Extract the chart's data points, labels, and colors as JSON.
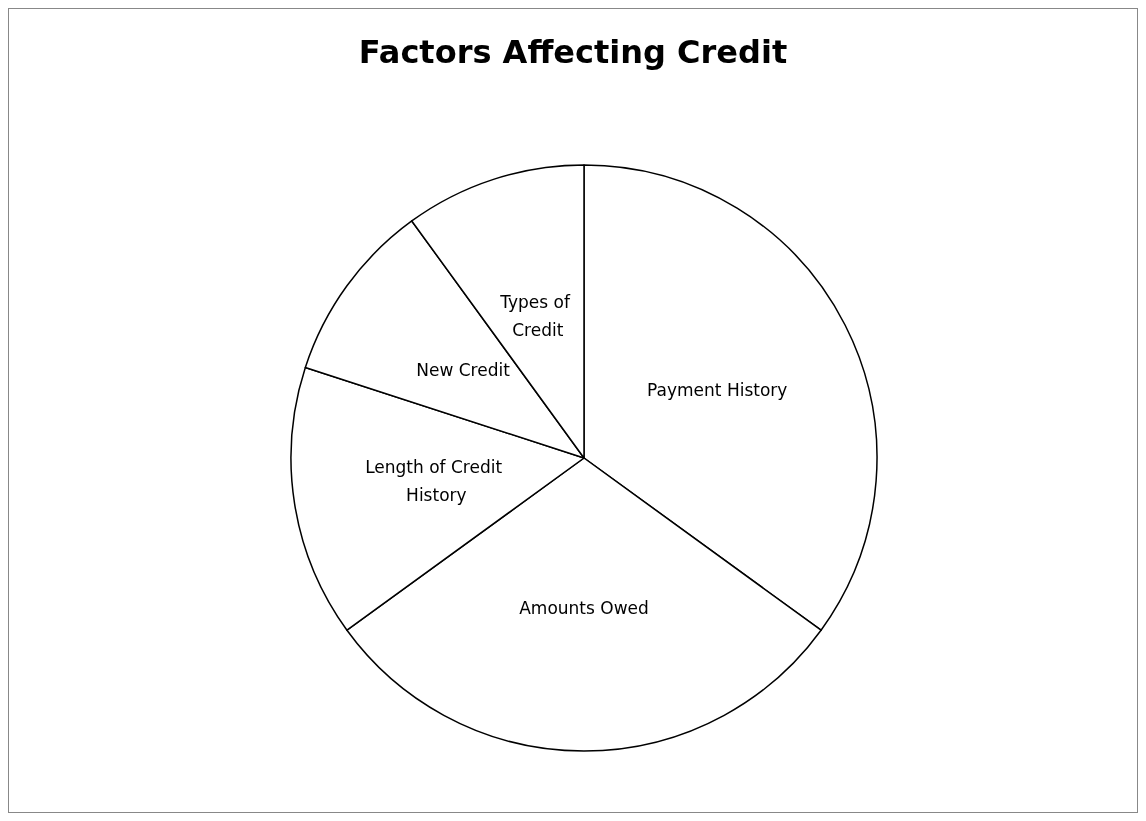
{
  "chart_data": {
    "type": "pie",
    "title": "Factors Affecting Credit",
    "categories": [
      "Payment History",
      "Amounts Owed",
      "Length of Credit History",
      "New Credit",
      "Types of Credit"
    ],
    "values": [
      35,
      30,
      15,
      10,
      10
    ],
    "colors": [
      "#ffffff",
      "#ffffff",
      "#ffffff",
      "#ffffff",
      "#ffffff"
    ],
    "legend": false
  }
}
